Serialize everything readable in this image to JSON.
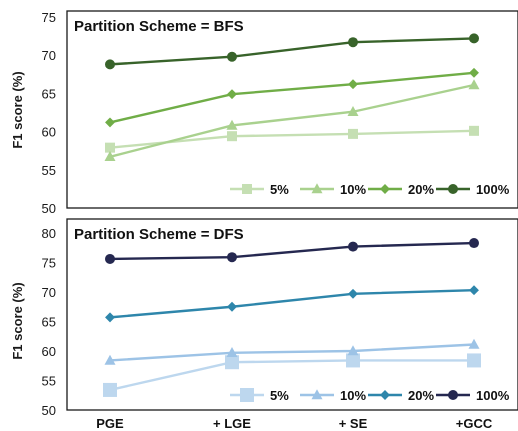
{
  "chart_data": [
    {
      "type": "line",
      "title": "Partition Scheme = BFS",
      "ylabel": "F1 score (%)",
      "ylim": [
        50,
        75
      ],
      "yticks": [
        50,
        55,
        60,
        65,
        70,
        75
      ],
      "categories": [
        "PGE",
        "+ LGE",
        "+ SE",
        "+GCC"
      ],
      "legend_position": "bottom-right",
      "series": [
        {
          "name": "5%",
          "marker": "square",
          "color": "#c5dfb3",
          "values": [
            57.9,
            59.4,
            59.7,
            60.1
          ]
        },
        {
          "name": "10%",
          "marker": "triangle",
          "color": "#a9d18e",
          "values": [
            56.7,
            60.8,
            62.6,
            66.1
          ]
        },
        {
          "name": "20%",
          "marker": "diamond",
          "color": "#70ad47",
          "values": [
            61.2,
            64.9,
            66.2,
            67.7
          ]
        },
        {
          "name": "100%",
          "marker": "circle",
          "color": "#38632a",
          "values": [
            68.8,
            69.8,
            71.7,
            72.2
          ]
        }
      ]
    },
    {
      "type": "line",
      "title": "Partition Scheme = DFS",
      "ylabel": "F1 score (%)",
      "ylim": [
        50,
        80
      ],
      "yticks": [
        50,
        55,
        60,
        65,
        70,
        75,
        80
      ],
      "categories": [
        "PGE",
        "+ LGE",
        "+ SE",
        "+GCC"
      ],
      "legend_position": "bottom-right",
      "series": [
        {
          "name": "5%",
          "marker": "square",
          "color": "#bdd7ee",
          "values": [
            53.4,
            58.1,
            58.4,
            58.4
          ]
        },
        {
          "name": "10%",
          "marker": "triangle",
          "color": "#9dc3e6",
          "values": [
            58.4,
            59.7,
            60.0,
            61.1
          ]
        },
        {
          "name": "20%",
          "marker": "diamond",
          "color": "#2e86ab",
          "values": [
            65.7,
            67.5,
            69.7,
            70.3
          ]
        },
        {
          "name": "100%",
          "marker": "circle",
          "color": "#252850",
          "values": [
            75.6,
            75.9,
            77.7,
            78.3
          ]
        }
      ]
    }
  ]
}
